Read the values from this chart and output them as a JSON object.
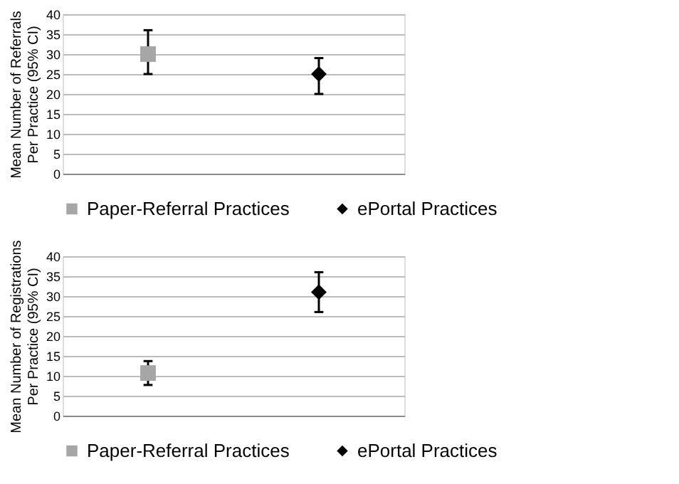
{
  "chart_data": [
    {
      "type": "scatter",
      "ylabel": "Mean Number of Referrals\nPer Practice (95% CI)",
      "categories": [
        null,
        null
      ],
      "ylim": [
        0,
        40
      ],
      "yticks": [
        0,
        5,
        10,
        15,
        20,
        25,
        30,
        35,
        40
      ],
      "grid": "y",
      "legend": "bottom",
      "tick_labels": "y",
      "series": [
        {
          "name": "Paper-Referral Practices",
          "color": "#a6a6a6",
          "marker": "square",
          "values": [
            30,
            null
          ],
          "errors": [
            [
              25,
              36
            ],
            null
          ]
        },
        {
          "name": "ePortal Practices",
          "color": "#000000",
          "marker": "diamond",
          "values": [
            null,
            25
          ],
          "errors": [
            null,
            [
              20,
              29
            ]
          ]
        }
      ]
    },
    {
      "type": "scatter",
      "ylabel": "Mean Number of Registrations\nPer Practice (95% CI)",
      "categories": [
        null,
        null
      ],
      "ylim": [
        0,
        40
      ],
      "yticks": [
        0,
        5,
        10,
        15,
        20,
        25,
        30,
        35,
        40
      ],
      "grid": "y",
      "legend": "bottom",
      "tick_labels": "y",
      "series": [
        {
          "name": "Paper-Referral Practices",
          "color": "#a6a6a6",
          "marker": "square",
          "values": [
            10.7,
            null
          ],
          "errors": [
            [
              7.7,
              13.7
            ],
            null
          ]
        },
        {
          "name": "ePortal Practices",
          "color": "#000000",
          "marker": "diamond",
          "values": [
            null,
            31
          ],
          "errors": [
            null,
            [
              26,
              36
            ]
          ]
        }
      ]
    }
  ]
}
